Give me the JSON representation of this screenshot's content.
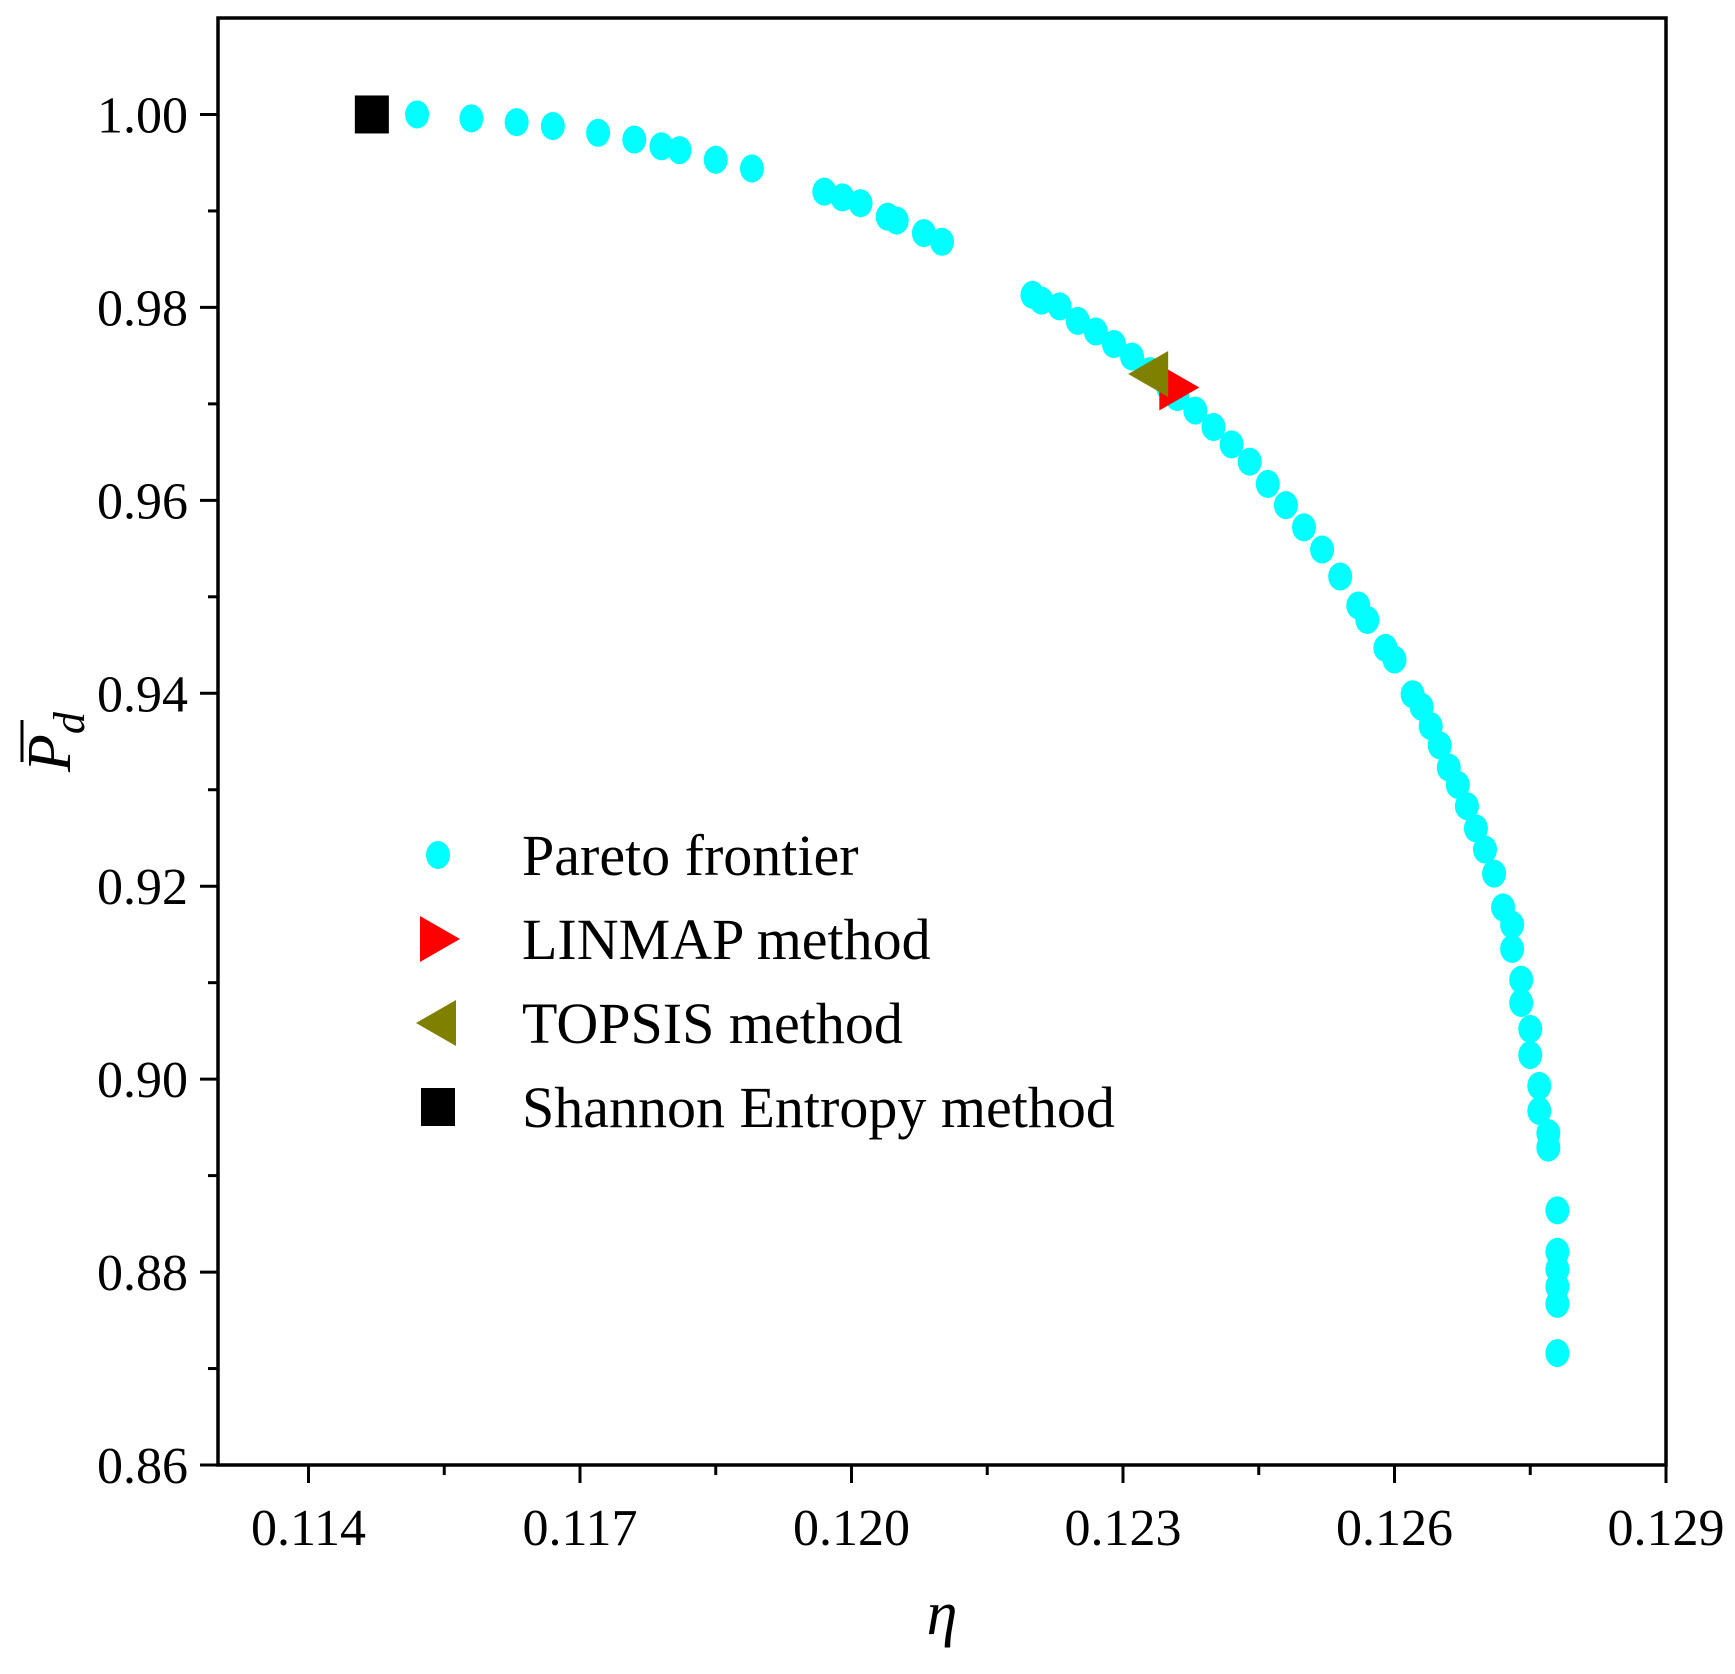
{
  "chart_data": {
    "type": "scatter",
    "title": "",
    "xlabel": "η",
    "ylabel": "P",
    "ylabel_subscript": "d",
    "xlim": [
      0.113,
      0.129
    ],
    "ylim": [
      0.86,
      1.01
    ],
    "x_ticks": [
      0.114,
      0.117,
      0.12,
      0.123,
      0.126,
      0.129
    ],
    "x_tick_labels": [
      "0.114",
      "0.117",
      "0.120",
      "0.123",
      "0.126",
      "0.129"
    ],
    "y_ticks": [
      0.86,
      0.88,
      0.9,
      0.92,
      0.94,
      0.96,
      0.98,
      1.0
    ],
    "y_tick_labels": [
      "0.86",
      "0.88",
      "0.90",
      "0.92",
      "0.94",
      "0.96",
      "0.98",
      "1.00"
    ],
    "grid": false,
    "legend_position": "center-left",
    "series": [
      {
        "name": "Pareto frontier",
        "marker": "circle",
        "color": "#00FFFF",
        "points": [
          [
            0.1152,
            1.0
          ],
          [
            0.1158,
            0.9996
          ],
          [
            0.1163,
            0.9992
          ],
          [
            0.1167,
            0.9988
          ],
          [
            0.1172,
            0.9981
          ],
          [
            0.1176,
            0.9974
          ],
          [
            0.1179,
            0.9967
          ],
          [
            0.1181,
            0.9963
          ],
          [
            0.1185,
            0.9953
          ],
          [
            0.1189,
            0.9944
          ],
          [
            0.1197,
            0.992
          ],
          [
            0.1199,
            0.9914
          ],
          [
            0.1201,
            0.9908
          ],
          [
            0.1204,
            0.9894
          ],
          [
            0.1205,
            0.989
          ],
          [
            0.1208,
            0.9877
          ],
          [
            0.121,
            0.9868
          ],
          [
            0.122,
            0.9813
          ],
          [
            0.1221,
            0.9807
          ],
          [
            0.1223,
            0.9801
          ],
          [
            0.1225,
            0.9786
          ],
          [
            0.1227,
            0.9775
          ],
          [
            0.1229,
            0.9762
          ],
          [
            0.1231,
            0.9749
          ],
          [
            0.1233,
            0.9734
          ],
          [
            0.1235,
            0.9717
          ],
          [
            0.1236,
            0.9707
          ],
          [
            0.1238,
            0.9693
          ],
          [
            0.124,
            0.9676
          ],
          [
            0.1242,
            0.9658
          ],
          [
            0.1244,
            0.964
          ],
          [
            0.1246,
            0.9617
          ],
          [
            0.1248,
            0.9595
          ],
          [
            0.125,
            0.9572
          ],
          [
            0.1252,
            0.9549
          ],
          [
            0.1254,
            0.9521
          ],
          [
            0.1256,
            0.9491
          ],
          [
            0.1257,
            0.9476
          ],
          [
            0.1259,
            0.9447
          ],
          [
            0.126,
            0.9435
          ],
          [
            0.1262,
            0.9399
          ],
          [
            0.1263,
            0.9386
          ],
          [
            0.1264,
            0.9366
          ],
          [
            0.1265,
            0.9346
          ],
          [
            0.1266,
            0.9323
          ],
          [
            0.1267,
            0.9305
          ],
          [
            0.1268,
            0.9283
          ],
          [
            0.1269,
            0.926
          ],
          [
            0.127,
            0.9238
          ],
          [
            0.1271,
            0.9213
          ],
          [
            0.1272,
            0.9178
          ],
          [
            0.1273,
            0.916
          ],
          [
            0.1273,
            0.9135
          ],
          [
            0.1274,
            0.9103
          ],
          [
            0.1274,
            0.9079
          ],
          [
            0.1275,
            0.9052
          ],
          [
            0.1275,
            0.9025
          ],
          [
            0.1276,
            0.8993
          ],
          [
            0.1276,
            0.8967
          ],
          [
            0.1277,
            0.8944
          ],
          [
            0.1277,
            0.8929
          ],
          [
            0.1278,
            0.8864
          ],
          [
            0.1278,
            0.8821
          ],
          [
            0.1278,
            0.8803
          ],
          [
            0.1278,
            0.8785
          ],
          [
            0.1278,
            0.8767
          ],
          [
            0.1278,
            0.8716
          ]
        ]
      },
      {
        "name": "LINMAP method",
        "marker": "triangle-right",
        "color": "#FF0000",
        "points": [
          [
            0.1236,
            0.9717
          ]
        ]
      },
      {
        "name": "TOPSIS method",
        "marker": "triangle-left",
        "color": "#808000",
        "points": [
          [
            0.1233,
            0.9731
          ]
        ]
      },
      {
        "name": "Shannon Entropy method",
        "marker": "square",
        "color": "#000000",
        "points": [
          [
            0.1147,
            1.0
          ]
        ]
      }
    ]
  }
}
